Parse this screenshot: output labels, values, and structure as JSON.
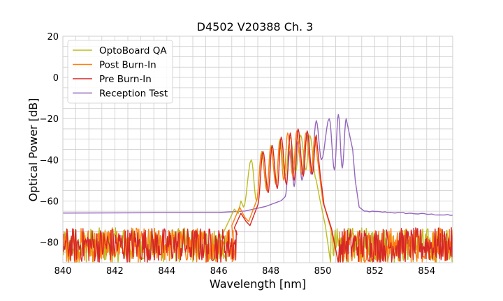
{
  "chart_data": {
    "type": "line",
    "title": "D4502 V20388 Ch. 3",
    "xlabel": "Wavelength [nm]",
    "ylabel": "Optical Power [dB]",
    "xlim": [
      840,
      855
    ],
    "ylim": [
      -90,
      20
    ],
    "xticks": [
      840,
      842,
      844,
      846,
      848,
      850,
      852,
      854
    ],
    "yticks": [
      -80,
      -60,
      -40,
      -20,
      0,
      20
    ],
    "minor_grid_x_step": 0.5,
    "minor_grid_y_step": 5,
    "grid": true,
    "legend_position": "upper-left",
    "noise_floor": {
      "low": -90,
      "high": -73
    },
    "series": [
      {
        "name": "OptoBoard QA",
        "color": "#bcbd22",
        "flat_level": null,
        "band": [
          846.3,
          850.3
        ],
        "skirt_left": [
          [
            846.0,
            -80
          ],
          [
            846.3,
            -72
          ],
          [
            846.6,
            -64
          ],
          [
            846.75,
            -66
          ],
          [
            846.85,
            -60
          ]
        ],
        "peaks": [
          [
            847.25,
            -40
          ],
          [
            847.65,
            -36
          ],
          [
            848.0,
            -33
          ],
          [
            848.35,
            -30
          ],
          [
            848.75,
            -29
          ],
          [
            849.15,
            -28
          ],
          [
            849.5,
            -28
          ]
        ],
        "valleys": [
          [
            846.95,
            -63
          ],
          [
            847.45,
            -60
          ],
          [
            847.85,
            -55
          ],
          [
            848.2,
            -52
          ],
          [
            848.55,
            -48
          ],
          [
            848.95,
            -46
          ],
          [
            849.35,
            -45
          ],
          [
            849.75,
            -50
          ]
        ],
        "edge_right": [
          [
            849.9,
            -60
          ],
          [
            850.1,
            -72
          ],
          [
            850.3,
            -90
          ]
        ]
      },
      {
        "name": "Post Burn-In",
        "color": "#ff7f0e",
        "flat_level": null,
        "band": [
          846.6,
          850.6
        ],
        "skirt_left": [
          [
            846.0,
            -80
          ],
          [
            846.5,
            -72
          ],
          [
            846.8,
            -63
          ],
          [
            847.0,
            -68
          ],
          [
            847.15,
            -70
          ]
        ],
        "peaks": [
          [
            847.65,
            -37
          ],
          [
            848.0,
            -34
          ],
          [
            848.35,
            -31
          ],
          [
            848.65,
            -27
          ],
          [
            849.0,
            -26
          ],
          [
            849.35,
            -27
          ],
          [
            849.7,
            -29
          ]
        ],
        "valleys": [
          [
            847.45,
            -60
          ],
          [
            847.85,
            -55
          ],
          [
            848.2,
            -52
          ],
          [
            848.5,
            -50
          ],
          [
            848.85,
            -48
          ],
          [
            849.2,
            -47
          ],
          [
            849.55,
            -46
          ]
        ],
        "edge_right": [
          [
            849.85,
            -45
          ],
          [
            850.0,
            -60
          ],
          [
            850.3,
            -73
          ],
          [
            850.6,
            -90
          ]
        ]
      },
      {
        "name": "Pre Burn-In",
        "color": "#d62728",
        "flat_level": null,
        "band": [
          846.7,
          850.6
        ],
        "skirt_left": [
          [
            846.0,
            -80
          ],
          [
            846.6,
            -73
          ],
          [
            846.85,
            -66
          ],
          [
            847.05,
            -70
          ],
          [
            847.2,
            -72
          ]
        ],
        "peaks": [
          [
            847.7,
            -36
          ],
          [
            848.05,
            -33
          ],
          [
            848.4,
            -29
          ],
          [
            848.75,
            -27
          ],
          [
            849.05,
            -25
          ],
          [
            849.4,
            -26
          ],
          [
            849.75,
            -28
          ]
        ],
        "valleys": [
          [
            847.5,
            -62
          ],
          [
            847.9,
            -56
          ],
          [
            848.25,
            -54
          ],
          [
            848.6,
            -52
          ],
          [
            848.9,
            -50
          ],
          [
            849.25,
            -48
          ],
          [
            849.6,
            -47
          ]
        ],
        "edge_right": [
          [
            849.9,
            -47
          ],
          [
            850.05,
            -62
          ],
          [
            850.35,
            -74
          ],
          [
            850.6,
            -90
          ]
        ]
      },
      {
        "name": "Reception Test",
        "color": "#9467bd",
        "flat_level": -66,
        "band": [
          840,
          855
        ],
        "skirt_left": [
          [
            840.0,
            -66
          ],
          [
            846.0,
            -65.5
          ],
          [
            847.0,
            -65
          ],
          [
            847.8,
            -63
          ],
          [
            848.4,
            -60
          ]
        ],
        "peaks": [
          [
            848.75,
            -35
          ],
          [
            849.05,
            -31
          ],
          [
            849.4,
            -28
          ],
          [
            849.75,
            -21
          ],
          [
            850.25,
            -20
          ],
          [
            850.6,
            -18
          ],
          [
            850.9,
            -20
          ]
        ],
        "valleys": [
          [
            848.55,
            -58
          ],
          [
            848.9,
            -53
          ],
          [
            849.2,
            -50
          ],
          [
            849.55,
            -47
          ],
          [
            849.95,
            -40
          ],
          [
            850.45,
            -45
          ],
          [
            850.75,
            -44
          ]
        ],
        "edge_right": [
          [
            851.15,
            -35
          ],
          [
            851.25,
            -50
          ],
          [
            851.4,
            -63
          ],
          [
            851.6,
            -65
          ],
          [
            855.0,
            -67
          ]
        ]
      }
    ]
  }
}
